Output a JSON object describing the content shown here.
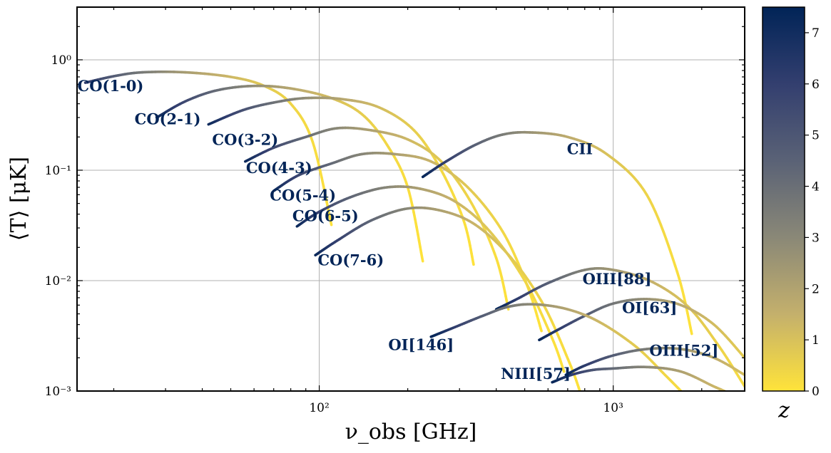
{
  "chart_data": {
    "type": "line",
    "xlabel": "ν_obs [GHz]",
    "ylabel": "⟨T⟩ [μK]",
    "xscale": "log",
    "yscale": "log",
    "xlim": [
      15,
      2800
    ],
    "ylim": [
      0.001,
      3
    ],
    "grid": true,
    "x_tick_labels": [
      {
        "value": 100,
        "label": "10²"
      },
      {
        "value": 1000,
        "label": "10³"
      }
    ],
    "y_tick_labels": [
      {
        "value": 1,
        "label": "10⁰"
      },
      {
        "value": 0.1,
        "label": "10⁻¹"
      },
      {
        "value": 0.01,
        "label": "10⁻²"
      },
      {
        "value": 0.001,
        "label": "10⁻³"
      }
    ],
    "colorbar": {
      "label": "z",
      "range": [
        0,
        7.5
      ],
      "ticks": [
        "0",
        "1",
        "2",
        "3",
        "4",
        "5",
        "6",
        "7"
      ],
      "colors": [
        "#ffe33a",
        "#c4b06c",
        "#8a8877",
        "#5a6276",
        "#333f6f",
        "#012457"
      ]
    },
    "label_color": "#012457",
    "series": [
      {
        "name": "CO(1-0)",
        "rest_ghz": 115.27,
        "label_x": 19.5,
        "label_y": 0.52,
        "points": [
          [
            16.0,
            0.62
          ],
          [
            20.0,
            0.71
          ],
          [
            25.0,
            0.77
          ],
          [
            35.0,
            0.77
          ],
          [
            50.0,
            0.7
          ],
          [
            65.0,
            0.58
          ],
          [
            80.0,
            0.4
          ],
          [
            95.0,
            0.18
          ],
          [
            110.0,
            0.032
          ]
        ]
      },
      {
        "name": "CO(2-1)",
        "rest_ghz": 230.54,
        "label_x": 30.5,
        "label_y": 0.26,
        "points": [
          [
            28.0,
            0.3
          ],
          [
            35.0,
            0.42
          ],
          [
            45.0,
            0.53
          ],
          [
            60.0,
            0.58
          ],
          [
            80.0,
            0.55
          ],
          [
            110.0,
            0.45
          ],
          [
            140.0,
            0.32
          ],
          [
            170.0,
            0.17
          ],
          [
            200.0,
            0.07
          ],
          [
            225.0,
            0.015
          ]
        ]
      },
      {
        "name": "CO(3-2)",
        "rest_ghz": 345.8,
        "label_x": 56,
        "label_y": 0.169,
        "points": [
          [
            42.0,
            0.26
          ],
          [
            55.0,
            0.35
          ],
          [
            70.0,
            0.41
          ],
          [
            90.0,
            0.45
          ],
          [
            120.0,
            0.44
          ],
          [
            160.0,
            0.37
          ],
          [
            210.0,
            0.23
          ],
          [
            260.0,
            0.1
          ],
          [
            310.0,
            0.035
          ],
          [
            335.0,
            0.014
          ]
        ]
      },
      {
        "name": "CO(4-3)",
        "rest_ghz": 461.04,
        "label_x": 73,
        "label_y": 0.094,
        "points": [
          [
            56.0,
            0.12
          ],
          [
            70.0,
            0.16
          ],
          [
            90.0,
            0.2
          ],
          [
            115.0,
            0.24
          ],
          [
            150.0,
            0.23
          ],
          [
            200.0,
            0.19
          ],
          [
            260.0,
            0.12
          ],
          [
            330.0,
            0.05
          ],
          [
            400.0,
            0.016
          ],
          [
            440.0,
            0.0055
          ]
        ]
      },
      {
        "name": "CO(5-4)",
        "rest_ghz": 576.27,
        "label_x": 88,
        "label_y": 0.053,
        "points": [
          [
            70.0,
            0.065
          ],
          [
            85.0,
            0.09
          ],
          [
            110.0,
            0.115
          ],
          [
            140.0,
            0.14
          ],
          [
            180.0,
            0.14
          ],
          [
            240.0,
            0.12
          ],
          [
            320.0,
            0.07
          ],
          [
            420.0,
            0.028
          ],
          [
            510.0,
            0.009
          ],
          [
            570.0,
            0.0035
          ]
        ]
      },
      {
        "name": "CO(6-5)",
        "rest_ghz": 691.47,
        "label_x": 105,
        "label_y": 0.0345,
        "points": [
          [
            84.0,
            0.031
          ],
          [
            100.0,
            0.042
          ],
          [
            130.0,
            0.058
          ],
          [
            170.0,
            0.07
          ],
          [
            220.0,
            0.068
          ],
          [
            290.0,
            0.052
          ],
          [
            380.0,
            0.028
          ],
          [
            500.0,
            0.01
          ],
          [
            620.0,
            0.003
          ],
          [
            680.0,
            0.0015
          ]
        ]
      },
      {
        "name": "CO(7-6)",
        "rest_ghz": 806.65,
        "label_x": 128,
        "label_y": 0.0138,
        "points": [
          [
            97.0,
            0.017
          ],
          [
            115.0,
            0.023
          ],
          [
            150.0,
            0.035
          ],
          [
            200.0,
            0.045
          ],
          [
            260.0,
            0.043
          ],
          [
            340.0,
            0.032
          ],
          [
            450.0,
            0.016
          ],
          [
            580.0,
            0.006
          ],
          [
            710.0,
            0.0018
          ],
          [
            770.0,
            0.001
          ]
        ]
      },
      {
        "name": "CII",
        "rest_ghz": 1900.54,
        "label_x": 770,
        "label_y": 0.14,
        "points": [
          [
            225.0,
            0.087
          ],
          [
            270.0,
            0.12
          ],
          [
            340.0,
            0.17
          ],
          [
            420.0,
            0.21
          ],
          [
            520.0,
            0.22
          ],
          [
            700.0,
            0.2
          ],
          [
            950.0,
            0.14
          ],
          [
            1300.0,
            0.06
          ],
          [
            1650.0,
            0.012
          ],
          [
            1850.0,
            0.0033
          ]
        ]
      },
      {
        "name": "OIII[88]",
        "rest_ghz": 3393.01,
        "label_x": 1030,
        "label_y": 0.0093,
        "points": [
          [
            400.0,
            0.0055
          ],
          [
            470.0,
            0.0068
          ],
          [
            600.0,
            0.0095
          ],
          [
            800.0,
            0.0125
          ],
          [
            1000.0,
            0.0125
          ],
          [
            1350.0,
            0.0098
          ],
          [
            1800.0,
            0.0058
          ],
          [
            2300.0,
            0.0025
          ],
          [
            2800.0,
            0.0011
          ]
        ]
      },
      {
        "name": "OI[63]",
        "rest_ghz": 4744.77,
        "label_x": 1330,
        "label_y": 0.0051,
        "points": [
          [
            560.0,
            0.0029
          ],
          [
            650.0,
            0.0036
          ],
          [
            800.0,
            0.0048
          ],
          [
            1000.0,
            0.0062
          ],
          [
            1300.0,
            0.0068
          ],
          [
            1700.0,
            0.006
          ],
          [
            2200.0,
            0.004
          ],
          [
            2800.0,
            0.002
          ]
        ]
      },
      {
        "name": "OI[146]",
        "rest_ghz": 2060.07,
        "label_x": 222,
        "label_y": 0.00235,
        "points": [
          [
            240.0,
            0.0031
          ],
          [
            290.0,
            0.0038
          ],
          [
            360.0,
            0.0048
          ],
          [
            440.0,
            0.0058
          ],
          [
            540.0,
            0.0061
          ],
          [
            700.0,
            0.0055
          ],
          [
            900.0,
            0.0042
          ],
          [
            1200.0,
            0.0025
          ],
          [
            1500.0,
            0.0014
          ],
          [
            1700.0,
            0.001
          ]
        ]
      },
      {
        "name": "NIII[57]",
        "rest_ghz": 5230.43,
        "label_x": 545,
        "label_y": 0.00129,
        "points": [
          [
            620.0,
            0.0012
          ],
          [
            720.0,
            0.0014
          ],
          [
            850.0,
            0.00155
          ],
          [
            1000.0,
            0.0016
          ],
          [
            1300.0,
            0.00165
          ],
          [
            1700.0,
            0.0015
          ],
          [
            2200.0,
            0.0011
          ],
          [
            2500.0,
            0.00095
          ]
        ]
      },
      {
        "name": "OIII[52]",
        "rest_ghz": 5785.88,
        "label_x": 1740,
        "label_y": 0.00208,
        "points": [
          [
            690.0,
            0.0014
          ],
          [
            800.0,
            0.0017
          ],
          [
            1000.0,
            0.0021
          ],
          [
            1300.0,
            0.0024
          ],
          [
            1700.0,
            0.0024
          ],
          [
            2200.0,
            0.002
          ],
          [
            2800.0,
            0.0014
          ]
        ]
      }
    ]
  }
}
